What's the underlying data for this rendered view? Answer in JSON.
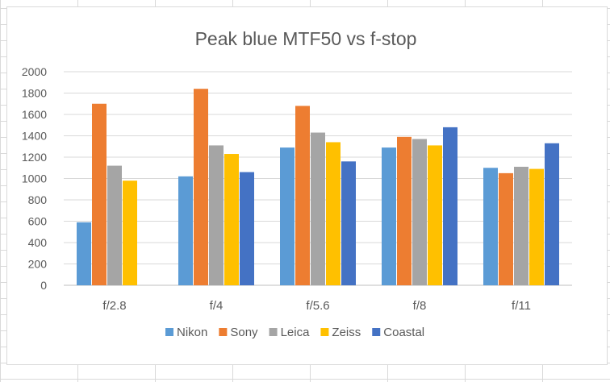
{
  "chart_data": {
    "type": "bar",
    "title": "Peak blue MTF50 vs f-stop",
    "xlabel": "",
    "ylabel": "",
    "ylim": [
      0,
      2000
    ],
    "yticks": [
      0,
      200,
      400,
      600,
      800,
      1000,
      1200,
      1400,
      1600,
      1800,
      2000
    ],
    "grid": true,
    "legend_position": "bottom",
    "categories": [
      "f/2.8",
      "f/4",
      "f/5.6",
      "f/8",
      "f/11"
    ],
    "series": [
      {
        "name": "Nikon",
        "color": "#5b9bd5",
        "values": [
          590,
          1020,
          1290,
          1290,
          1100
        ]
      },
      {
        "name": "Sony",
        "color": "#ed7d31",
        "values": [
          1700,
          1840,
          1680,
          1390,
          1050
        ]
      },
      {
        "name": "Leica",
        "color": "#a5a5a5",
        "values": [
          1120,
          1310,
          1430,
          1370,
          1110
        ]
      },
      {
        "name": "Zeiss",
        "color": "#ffc000",
        "values": [
          980,
          1230,
          1340,
          1310,
          1090
        ]
      },
      {
        "name": "Coastal",
        "color": "#4472c4",
        "values": [
          null,
          1060,
          1160,
          1480,
          1330
        ]
      }
    ]
  }
}
